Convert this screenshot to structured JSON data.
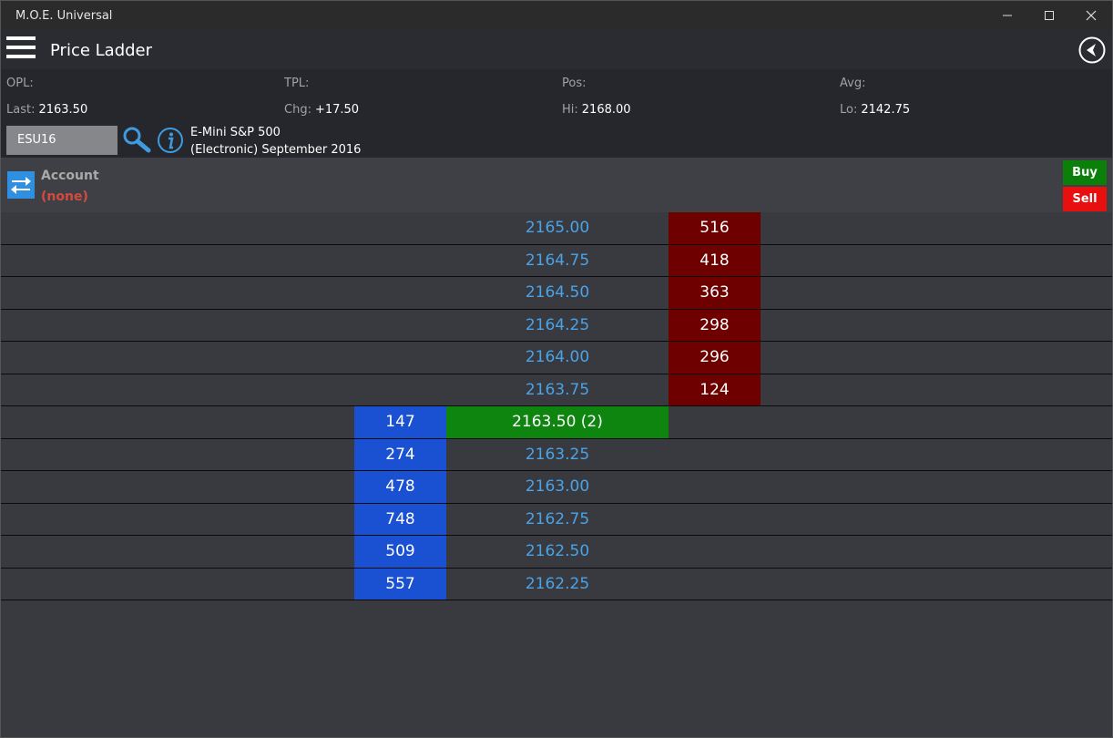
{
  "window": {
    "title": "M.O.E. Universal"
  },
  "app": {
    "title": "Price Ladder"
  },
  "stats": {
    "opl_label": "OPL:",
    "opl_value": "",
    "tpl_label": "TPL:",
    "tpl_value": "",
    "pos_label": "Pos:",
    "pos_value": "",
    "avg_label": "Avg:",
    "avg_value": "",
    "last_label": "Last:",
    "last_value": "2163.50",
    "chg_label": "Chg:",
    "chg_value": "+17.50",
    "hi_label": "Hi:",
    "hi_value": "2168.00",
    "lo_label": "Lo:",
    "lo_value": "2142.75"
  },
  "instrument": {
    "symbol": "ESU16",
    "desc_line1": "E-Mini S&P 500",
    "desc_line2": "(Electronic) September 2016"
  },
  "account": {
    "label": "Account",
    "value": "(none)"
  },
  "actions": {
    "buy": "Buy",
    "sell": "Sell"
  },
  "colors": {
    "bid": "#1a50d2",
    "ask": "#6e0000",
    "last": "#0e850e",
    "price": "#4aa3e6",
    "sell": "#e8100f",
    "buy": "#0a7f0a"
  },
  "icons": {
    "menu": "hamburger-icon",
    "back": "back-arrow-icon",
    "search": "search-icon",
    "info": "info-icon",
    "account": "swap-icon"
  },
  "ladder": [
    {
      "price": "2165.00",
      "bid": "",
      "ask": "516",
      "is_last": false
    },
    {
      "price": "2164.75",
      "bid": "",
      "ask": "418",
      "is_last": false
    },
    {
      "price": "2164.50",
      "bid": "",
      "ask": "363",
      "is_last": false
    },
    {
      "price": "2164.25",
      "bid": "",
      "ask": "298",
      "is_last": false
    },
    {
      "price": "2164.00",
      "bid": "",
      "ask": "296",
      "is_last": false
    },
    {
      "price": "2163.75",
      "bid": "",
      "ask": "124",
      "is_last": false
    },
    {
      "price": "2163.50 (2)",
      "bid": "147",
      "ask": "",
      "is_last": true
    },
    {
      "price": "2163.25",
      "bid": "274",
      "ask": "",
      "is_last": false
    },
    {
      "price": "2163.00",
      "bid": "478",
      "ask": "",
      "is_last": false
    },
    {
      "price": "2162.75",
      "bid": "748",
      "ask": "",
      "is_last": false
    },
    {
      "price": "2162.50",
      "bid": "509",
      "ask": "",
      "is_last": false
    },
    {
      "price": "2162.25",
      "bid": "557",
      "ask": "",
      "is_last": false
    }
  ]
}
